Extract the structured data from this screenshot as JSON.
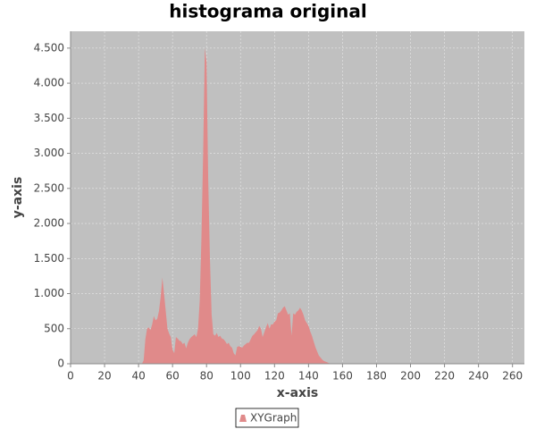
{
  "chart_data": {
    "type": "area",
    "title": "histograma original",
    "x_label": "x-axis",
    "y_label": "y-axis",
    "x": [
      0,
      42,
      43,
      44,
      45,
      46,
      47,
      48,
      49,
      50,
      51,
      52,
      53,
      54,
      55,
      56,
      57,
      58,
      59,
      60,
      61,
      62,
      63,
      64,
      65,
      66,
      67,
      68,
      69,
      70,
      71,
      72,
      73,
      74,
      75,
      76,
      77,
      78,
      79,
      80,
      81,
      82,
      83,
      84,
      85,
      86,
      87,
      88,
      89,
      90,
      91,
      92,
      93,
      94,
      95,
      96,
      97,
      98,
      99,
      100,
      101,
      102,
      103,
      104,
      105,
      106,
      107,
      108,
      109,
      110,
      111,
      112,
      113,
      114,
      115,
      116,
      117,
      118,
      119,
      120,
      121,
      122,
      123,
      124,
      125,
      126,
      127,
      128,
      129,
      130,
      131,
      132,
      133,
      134,
      135,
      136,
      137,
      138,
      139,
      140,
      141,
      142,
      143,
      144,
      145,
      146,
      147,
      148,
      149,
      150,
      151,
      152,
      153,
      255
    ],
    "series": [
      {
        "name": "XYGraph",
        "color": "#e08a8a",
        "values": [
          0,
          0,
          50,
          350,
          500,
          520,
          480,
          560,
          680,
          620,
          640,
          750,
          950,
          1230,
          1000,
          750,
          500,
          430,
          380,
          200,
          150,
          380,
          360,
          330,
          320,
          280,
          300,
          220,
          300,
          350,
          380,
          400,
          420,
          380,
          500,
          900,
          1800,
          3000,
          4500,
          4300,
          2600,
          1500,
          700,
          420,
          400,
          440,
          380,
          400,
          360,
          350,
          320,
          280,
          300,
          250,
          230,
          150,
          120,
          240,
          250,
          240,
          230,
          260,
          280,
          300,
          300,
          350,
          400,
          420,
          450,
          480,
          540,
          500,
          380,
          450,
          520,
          580,
          500,
          560,
          560,
          600,
          620,
          720,
          730,
          760,
          800,
          820,
          760,
          700,
          720,
          400,
          720,
          700,
          740,
          760,
          800,
          760,
          700,
          620,
          580,
          540,
          460,
          400,
          320,
          240,
          180,
          120,
          90,
          60,
          40,
          30,
          20,
          10,
          0,
          0
        ]
      }
    ],
    "xlim": [
      0,
      267
    ],
    "ylim": [
      0,
      4740
    ],
    "xticks": [
      0,
      20,
      40,
      60,
      80,
      100,
      120,
      140,
      160,
      180,
      200,
      220,
      240,
      260
    ],
    "yticks": [
      0,
      500,
      {
        "value": 1000,
        "label": "1.000"
      },
      {
        "value": 1500,
        "label": "1.500"
      },
      {
        "value": 2000,
        "label": "2.000"
      },
      {
        "value": 2500,
        "label": "2.500"
      },
      {
        "value": 3000,
        "label": "3.000"
      },
      {
        "value": 3500,
        "label": "3.500"
      },
      {
        "value": 4000,
        "label": "4.000"
      },
      {
        "value": 4500,
        "label": "4.500"
      }
    ],
    "grid": true,
    "legend": "bottom"
  }
}
